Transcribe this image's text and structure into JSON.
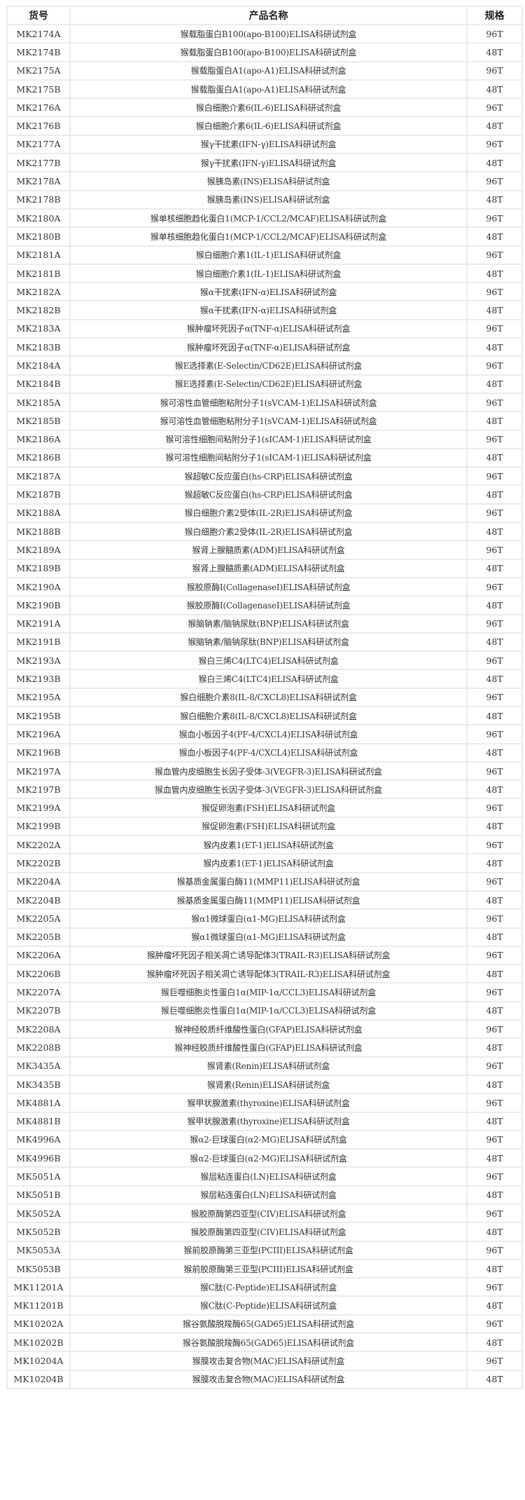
{
  "table": {
    "headers": [
      "货号",
      "产品名称",
      "规格"
    ],
    "rows": [
      [
        "MK2174A",
        "猴载脂蛋白B100(apo-B100)ELISA科研试剂盒",
        "96T"
      ],
      [
        "MK2174B",
        "猴载脂蛋白B100(apo-B100)ELISA科研试剂盒",
        "48T"
      ],
      [
        "MK2175A",
        "猴载脂蛋白A1(apo-A1)ELISA科研试剂盒",
        "96T"
      ],
      [
        "MK2175B",
        "猴载脂蛋白A1(apo-A1)ELISA科研试剂盒",
        "48T"
      ],
      [
        "MK2176A",
        "猴白细胞介素6(IL-6)ELISA科研试剂盒",
        "96T"
      ],
      [
        "MK2176B",
        "猴白细胞介素6(IL-6)ELISA科研试剂盒",
        "48T"
      ],
      [
        "MK2177A",
        "猴γ干扰素(IFN-γ)ELISA科研试剂盒",
        "96T"
      ],
      [
        "MK2177B",
        "猴γ干扰素(IFN-γ)ELISA科研试剂盒",
        "48T"
      ],
      [
        "MK2178A",
        "猴胰岛素(INS)ELISA科研试剂盒",
        "96T"
      ],
      [
        "MK2178B",
        "猴胰岛素(INS)ELISA科研试剂盒",
        "48T"
      ],
      [
        "MK2180A",
        "猴单核细胞趋化蛋白1(MCP-1/CCL2/MCAF)ELISA科研试剂盒",
        "96T"
      ],
      [
        "MK2180B",
        "猴单核细胞趋化蛋白1(MCP-1/CCL2/MCAF)ELISA科研试剂盒",
        "48T"
      ],
      [
        "MK2181A",
        "猴白细胞介素1(IL-1)ELISA科研试剂盒",
        "96T"
      ],
      [
        "MK2181B",
        "猴白细胞介素1(IL-1)ELISA科研试剂盒",
        "48T"
      ],
      [
        "MK2182A",
        "猴α干扰素(IFN-α)ELISA科研试剂盒",
        "96T"
      ],
      [
        "MK2182B",
        "猴α干扰素(IFN-α)ELISA科研试剂盒",
        "48T"
      ],
      [
        "MK2183A",
        "猴肿瘤坏死因子α(TNF-α)ELISA科研试剂盒",
        "96T"
      ],
      [
        "MK2183B",
        "猴肿瘤坏死因子α(TNF-α)ELISA科研试剂盒",
        "48T"
      ],
      [
        "MK2184A",
        "猴E选择素(E-Selectin/CD62E)ELISA科研试剂盒",
        "96T"
      ],
      [
        "MK2184B",
        "猴E选择素(E-Selectin/CD62E)ELISA科研试剂盒",
        "48T"
      ],
      [
        "MK2185A",
        "猴可溶性血管细胞粘附分子1(sVCAM-1)ELISA科研试剂盒",
        "96T"
      ],
      [
        "MK2185B",
        "猴可溶性血管细胞粘附分子1(sVCAM-1)ELISA科研试剂盒",
        "48T"
      ],
      [
        "MK2186A",
        "猴可溶性细胞间粘附分子1(sICAM-1)ELISA科研试剂盒",
        "96T"
      ],
      [
        "MK2186B",
        "猴可溶性细胞间粘附分子1(sICAM-1)ELISA科研试剂盒",
        "48T"
      ],
      [
        "MK2187A",
        "猴超敏C反应蛋白(hs-CRP)ELISA科研试剂盒",
        "96T"
      ],
      [
        "MK2187B",
        "猴超敏C反应蛋白(hs-CRP)ELISA科研试剂盒",
        "48T"
      ],
      [
        "MK2188A",
        "猴白细胞介素2受体(IL-2R)ELISA科研试剂盒",
        "96T"
      ],
      [
        "MK2188B",
        "猴白细胞介素2受体(IL-2R)ELISA科研试剂盒",
        "48T"
      ],
      [
        "MK2189A",
        "猴肾上腺髓质素(ADM)ELISA科研试剂盒",
        "96T"
      ],
      [
        "MK2189B",
        "猴肾上腺髓质素(ADM)ELISA科研试剂盒",
        "48T"
      ],
      [
        "MK2190A",
        "猴胶原酶I(CollagenaseI)ELISA科研试剂盒",
        "96T"
      ],
      [
        "MK2190B",
        "猴胶原酶I(CollagenaseI)ELISA科研试剂盒",
        "48T"
      ],
      [
        "MK2191A",
        "猴脑钠素/脑钠尿肽(BNP)ELISA科研试剂盒",
        "96T"
      ],
      [
        "MK2191B",
        "猴脑钠素/脑钠尿肽(BNP)ELISA科研试剂盒",
        "48T"
      ],
      [
        "MK2193A",
        "猴白三烯C4(LTC4)ELISA科研试剂盒",
        "96T"
      ],
      [
        "MK2193B",
        "猴白三烯C4(LTC4)ELISA科研试剂盒",
        "48T"
      ],
      [
        "MK2195A",
        "猴白细胞介素8(IL-8/CXCL8)ELISA科研试剂盒",
        "96T"
      ],
      [
        "MK2195B",
        "猴白细胞介素8(IL-8/CXCL8)ELISA科研试剂盒",
        "48T"
      ],
      [
        "MK2196A",
        "猴血小板因子4(PF-4/CXCL4)ELISA科研试剂盒",
        "96T"
      ],
      [
        "MK2196B",
        "猴血小板因子4(PF-4/CXCL4)ELISA科研试剂盒",
        "48T"
      ],
      [
        "MK2197A",
        "猴血管内皮细胞生长因子受体-3(VEGFR-3)ELISA科研试剂盒",
        "96T"
      ],
      [
        "MK2197B",
        "猴血管内皮细胞生长因子受体-3(VEGFR-3)ELISA科研试剂盒",
        "48T"
      ],
      [
        "MK2199A",
        "猴促卵泡素(FSH)ELISA科研试剂盒",
        "96T"
      ],
      [
        "MK2199B",
        "猴促卵泡素(FSH)ELISA科研试剂盒",
        "48T"
      ],
      [
        "MK2202A",
        "猴内皮素1(ET-1)ELISA科研试剂盒",
        "96T"
      ],
      [
        "MK2202B",
        "猴内皮素1(ET-1)ELISA科研试剂盒",
        "48T"
      ],
      [
        "MK2204A",
        "猴基质金属蛋白酶11(MMP11)ELISA科研试剂盒",
        "96T"
      ],
      [
        "MK2204B",
        "猴基质金属蛋白酶11(MMP11)ELISA科研试剂盒",
        "48T"
      ],
      [
        "MK2205A",
        "猴α1微球蛋白(α1-MG)ELISA科研试剂盒",
        "96T"
      ],
      [
        "MK2205B",
        "猴α1微球蛋白(α1-MG)ELISA科研试剂盒",
        "48T"
      ],
      [
        "MK2206A",
        "猴肿瘤坏死因子相关凋亡诱导配体3(TRAIL-R3)ELISA科研试剂盒",
        "96T"
      ],
      [
        "MK2206B",
        "猴肿瘤坏死因子相关凋亡诱导配体3(TRAIL-R3)ELISA科研试剂盒",
        "48T"
      ],
      [
        "MK2207A",
        "猴巨噬细胞炎性蛋白1α(MIP-1α/CCL3)ELISA科研试剂盒",
        "96T"
      ],
      [
        "MK2207B",
        "猴巨噬细胞炎性蛋白1α(MIP-1α/CCL3)ELISA科研试剂盒",
        "48T"
      ],
      [
        "MK2208A",
        "猴神经胶质纤维酸性蛋白(GFAP)ELISA科研试剂盒",
        "96T"
      ],
      [
        "MK2208B",
        "猴神经胶质纤维酸性蛋白(GFAP)ELISA科研试剂盒",
        "48T"
      ],
      [
        "MK3435A",
        "猴肾素(Renin)ELISA科研试剂盒",
        "96T"
      ],
      [
        "MK3435B",
        "猴肾素(Renin)ELISA科研试剂盒",
        "48T"
      ],
      [
        "MK4881A",
        "猴甲状腺激素(thyroxine)ELISA科研试剂盒",
        "96T"
      ],
      [
        "MK4881B",
        "猴甲状腺激素(thyroxine)ELISA科研试剂盒",
        "48T"
      ],
      [
        "MK4996A",
        "猴α2-巨球蛋白(α2-MG)ELISA科研试剂盒",
        "96T"
      ],
      [
        "MK4996B",
        "猴α2-巨球蛋白(α2-MG)ELISA科研试剂盒",
        "48T"
      ],
      [
        "MK5051A",
        "猴层粘连蛋白(LN)ELISA科研试剂盒",
        "96T"
      ],
      [
        "MK5051B",
        "猴层粘连蛋白(LN)ELISA科研试剂盒",
        "48T"
      ],
      [
        "MK5052A",
        "猴胶原酶第四亚型(CIV)ELISA科研试剂盒",
        "96T"
      ],
      [
        "MK5052B",
        "猴胶原酶第四亚型(CIV)ELISA科研试剂盒",
        "48T"
      ],
      [
        "MK5053A",
        "猴前胶原酶第三亚型(PCIII)ELISA科研试剂盒",
        "96T"
      ],
      [
        "MK5053B",
        "猴前胶原酶第三亚型(PCIII)ELISA科研试剂盒",
        "48T"
      ],
      [
        "MK11201A",
        "猴C肽(C-Peptide)ELISA科研试剂盒",
        "96T"
      ],
      [
        "MK11201B",
        "猴C肽(C-Peptide)ELISA科研试剂盒",
        "48T"
      ],
      [
        "MK10202A",
        "猴谷氨酸脱羧酶65(GAD65)ELISA科研试剂盒",
        "96T"
      ],
      [
        "MK10202B",
        "猴谷氨酸脱羧酶65(GAD65)ELISA科研试剂盒",
        "48T"
      ],
      [
        "MK10204A",
        "猴膜攻击复合物(MAC)ELISA科研试剂盒",
        "96T"
      ],
      [
        "MK10204B",
        "猴膜攻击复合物(MAC)ELISA科研试剂盒",
        "48T"
      ]
    ]
  }
}
